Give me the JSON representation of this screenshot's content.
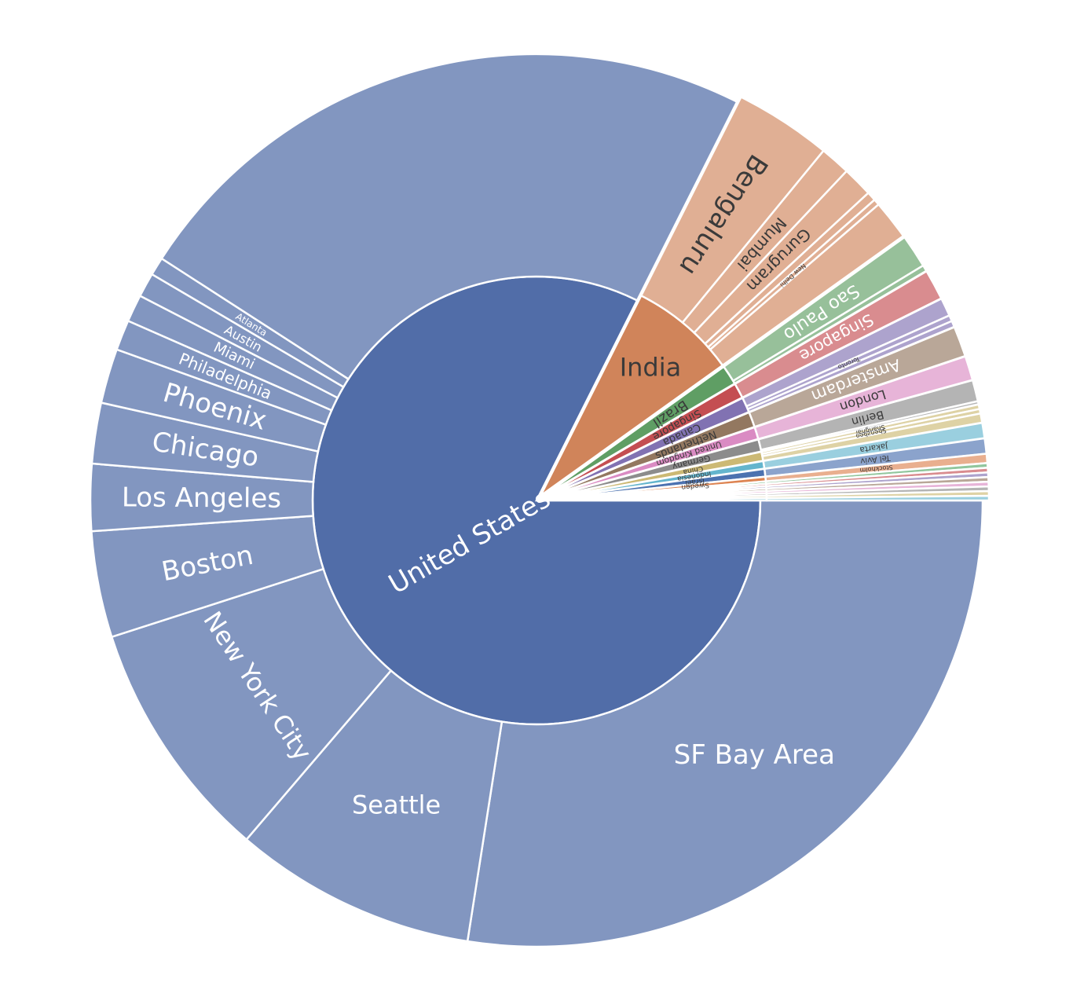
{
  "chart_data": {
    "type": "sunburst",
    "title": "",
    "colors": {
      "United States": "#516DA8",
      "India": "#D0845A",
      "Brazil": "#5F9E64",
      "Singapore": "#C44E52",
      "Canada": "#8172B2",
      "Netherlands": "#937860",
      "United Kingdom": "#DA8BC3",
      "Germany": "#8C8C8C",
      "China": "#CCB974",
      "Indonesia": "#64B5CD",
      "Israel": "#4C72B0",
      "Sweden": "#DD8452",
      "Other": "#55A868"
    },
    "countries": [
      {
        "name": "United States",
        "value": 75,
        "cities": [
          {
            "name": "SF Bay Area",
            "value": 25
          },
          {
            "name": "Seattle",
            "value": 8
          },
          {
            "name": "New York City",
            "value": 8
          },
          {
            "name": "Boston",
            "value": 3.5
          },
          {
            "name": "Los Angeles",
            "value": 2.2
          },
          {
            "name": "Chicago",
            "value": 2.0
          },
          {
            "name": "Phoenix",
            "value": 1.8
          },
          {
            "name": "Philadelphia",
            "value": 1.0
          },
          {
            "name": "Miami",
            "value": 0.9
          },
          {
            "name": "Austin",
            "value": 0.8
          },
          {
            "name": "Atlanta",
            "value": 0.6
          },
          {
            "name": "",
            "value": 21.2
          }
        ]
      },
      {
        "name": "India",
        "value": 7,
        "cities": [
          {
            "name": "Bengaluru",
            "value": 3.2
          },
          {
            "name": "Mumbai",
            "value": 1.0
          },
          {
            "name": "Gurugram",
            "value": 1.0
          },
          {
            "name": "",
            "value": 0.3
          },
          {
            "name": "New Delhi",
            "value": 0.2
          },
          {
            "name": "",
            "value": 1.3
          }
        ]
      },
      {
        "name": "Brazil",
        "value": 1.3,
        "cities": [
          {
            "name": "Sao Paulo",
            "value": 1.1
          },
          {
            "name": "",
            "value": 0.2
          }
        ]
      },
      {
        "name": "Singapore",
        "value": 1.0,
        "cities": [
          {
            "name": "Singapore",
            "value": 1.0
          }
        ]
      },
      {
        "name": "Canada",
        "value": 1.0,
        "cities": [
          {
            "name": "",
            "value": 0.6
          },
          {
            "name": "Toronto",
            "value": 0.2
          },
          {
            "name": "",
            "value": 0.2
          }
        ]
      },
      {
        "name": "Netherlands",
        "value": 1.0,
        "cities": [
          {
            "name": "Amsterdam",
            "value": 1.0
          }
        ]
      },
      {
        "name": "United Kingdom",
        "value": 0.8,
        "cities": [
          {
            "name": "London",
            "value": 0.8
          }
        ]
      },
      {
        "name": "Germany",
        "value": 0.8,
        "cities": [
          {
            "name": "Berlin",
            "value": 0.7
          },
          {
            "name": "",
            "value": 0.1
          }
        ]
      },
      {
        "name": "China",
        "value": 0.6,
        "cities": [
          {
            "name": "Shanghai",
            "value": 0.15
          },
          {
            "name": "Shenzhen",
            "value": 0.15
          },
          {
            "name": "",
            "value": 0.3
          }
        ]
      },
      {
        "name": "Indonesia",
        "value": 0.5,
        "cities": [
          {
            "name": "Jakarta",
            "value": 0.5
          }
        ]
      },
      {
        "name": "Israel",
        "value": 0.5,
        "cities": [
          {
            "name": "Tel Aviv",
            "value": 0.5
          }
        ]
      },
      {
        "name": "Sweden",
        "value": 0.3,
        "cities": [
          {
            "name": "Stockholm",
            "value": 0.3
          }
        ]
      },
      {
        "name": "",
        "value": 0.15,
        "cities": [
          {
            "name": "",
            "value": 0.15
          }
        ]
      },
      {
        "name": "",
        "value": 0.15,
        "cities": [
          {
            "name": "",
            "value": 0.15
          }
        ]
      },
      {
        "name": "",
        "value": 0.15,
        "cities": [
          {
            "name": "",
            "value": 0.15
          }
        ]
      },
      {
        "name": "",
        "value": 0.15,
        "cities": [
          {
            "name": "",
            "value": 0.15
          }
        ]
      },
      {
        "name": "",
        "value": 0.15,
        "cities": [
          {
            "name": "",
            "value": 0.15
          }
        ]
      },
      {
        "name": "",
        "value": 0.15,
        "cities": [
          {
            "name": "",
            "value": 0.15
          }
        ]
      },
      {
        "name": "",
        "value": 0.15,
        "cities": [
          {
            "name": "",
            "value": 0.15
          }
        ]
      },
      {
        "name": "",
        "value": 0.15,
        "cities": [
          {
            "name": "",
            "value": 0.15
          }
        ]
      }
    ]
  }
}
